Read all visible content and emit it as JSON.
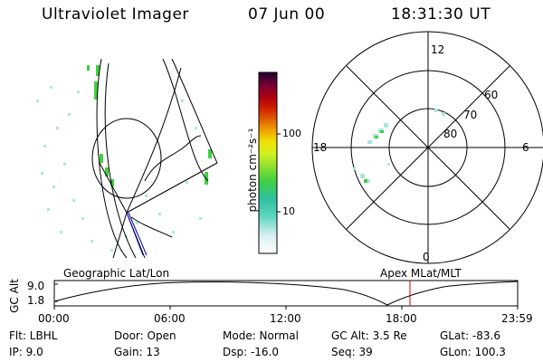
{
  "header": {
    "instrument": "Ultraviolet Imager",
    "date": "07 Jun 00",
    "time": "18:31:30 UT"
  },
  "colorbar": {
    "unit_label": "photon cm⁻²s⁻¹",
    "ticks": [
      "100",
      "10"
    ],
    "colors": [
      "#ffffff",
      "#d8f0f0",
      "#a8e8e0",
      "#60d8c0",
      "#30c0a0",
      "#40d040",
      "#90e030",
      "#d0f020",
      "#f0e000",
      "#f0a000",
      "#e06000",
      "#d02000",
      "#b00010",
      "#800030",
      "#500050",
      "#200030"
    ]
  },
  "polar": {
    "mlt_labels": [
      "12",
      "6",
      "0",
      "18"
    ],
    "lat_labels": [
      "60",
      "70",
      "80"
    ]
  },
  "altitude_plot": {
    "ylabel": "GC Alt",
    "y_ticks": [
      "9.0",
      "1.8"
    ],
    "left_title": "Geographic Lat/Lon",
    "right_title": "Apex MLat/MLT",
    "x_ticks": [
      "00:00",
      "06:00",
      "12:00",
      "18:00",
      "23:59"
    ]
  },
  "info": {
    "flt": "Flt: LBHL",
    "ip": "IP:  9.0",
    "door": "Door: Open",
    "gain": "Gain: 13",
    "mode": "Mode: Normal",
    "dsp": "Dsp:  -16.0",
    "gcalt": "GC Alt: 3.5 Re",
    "seq": "Seq: 39",
    "glat": "GLat: -83.6",
    "glon": "GLon: 100.3"
  }
}
